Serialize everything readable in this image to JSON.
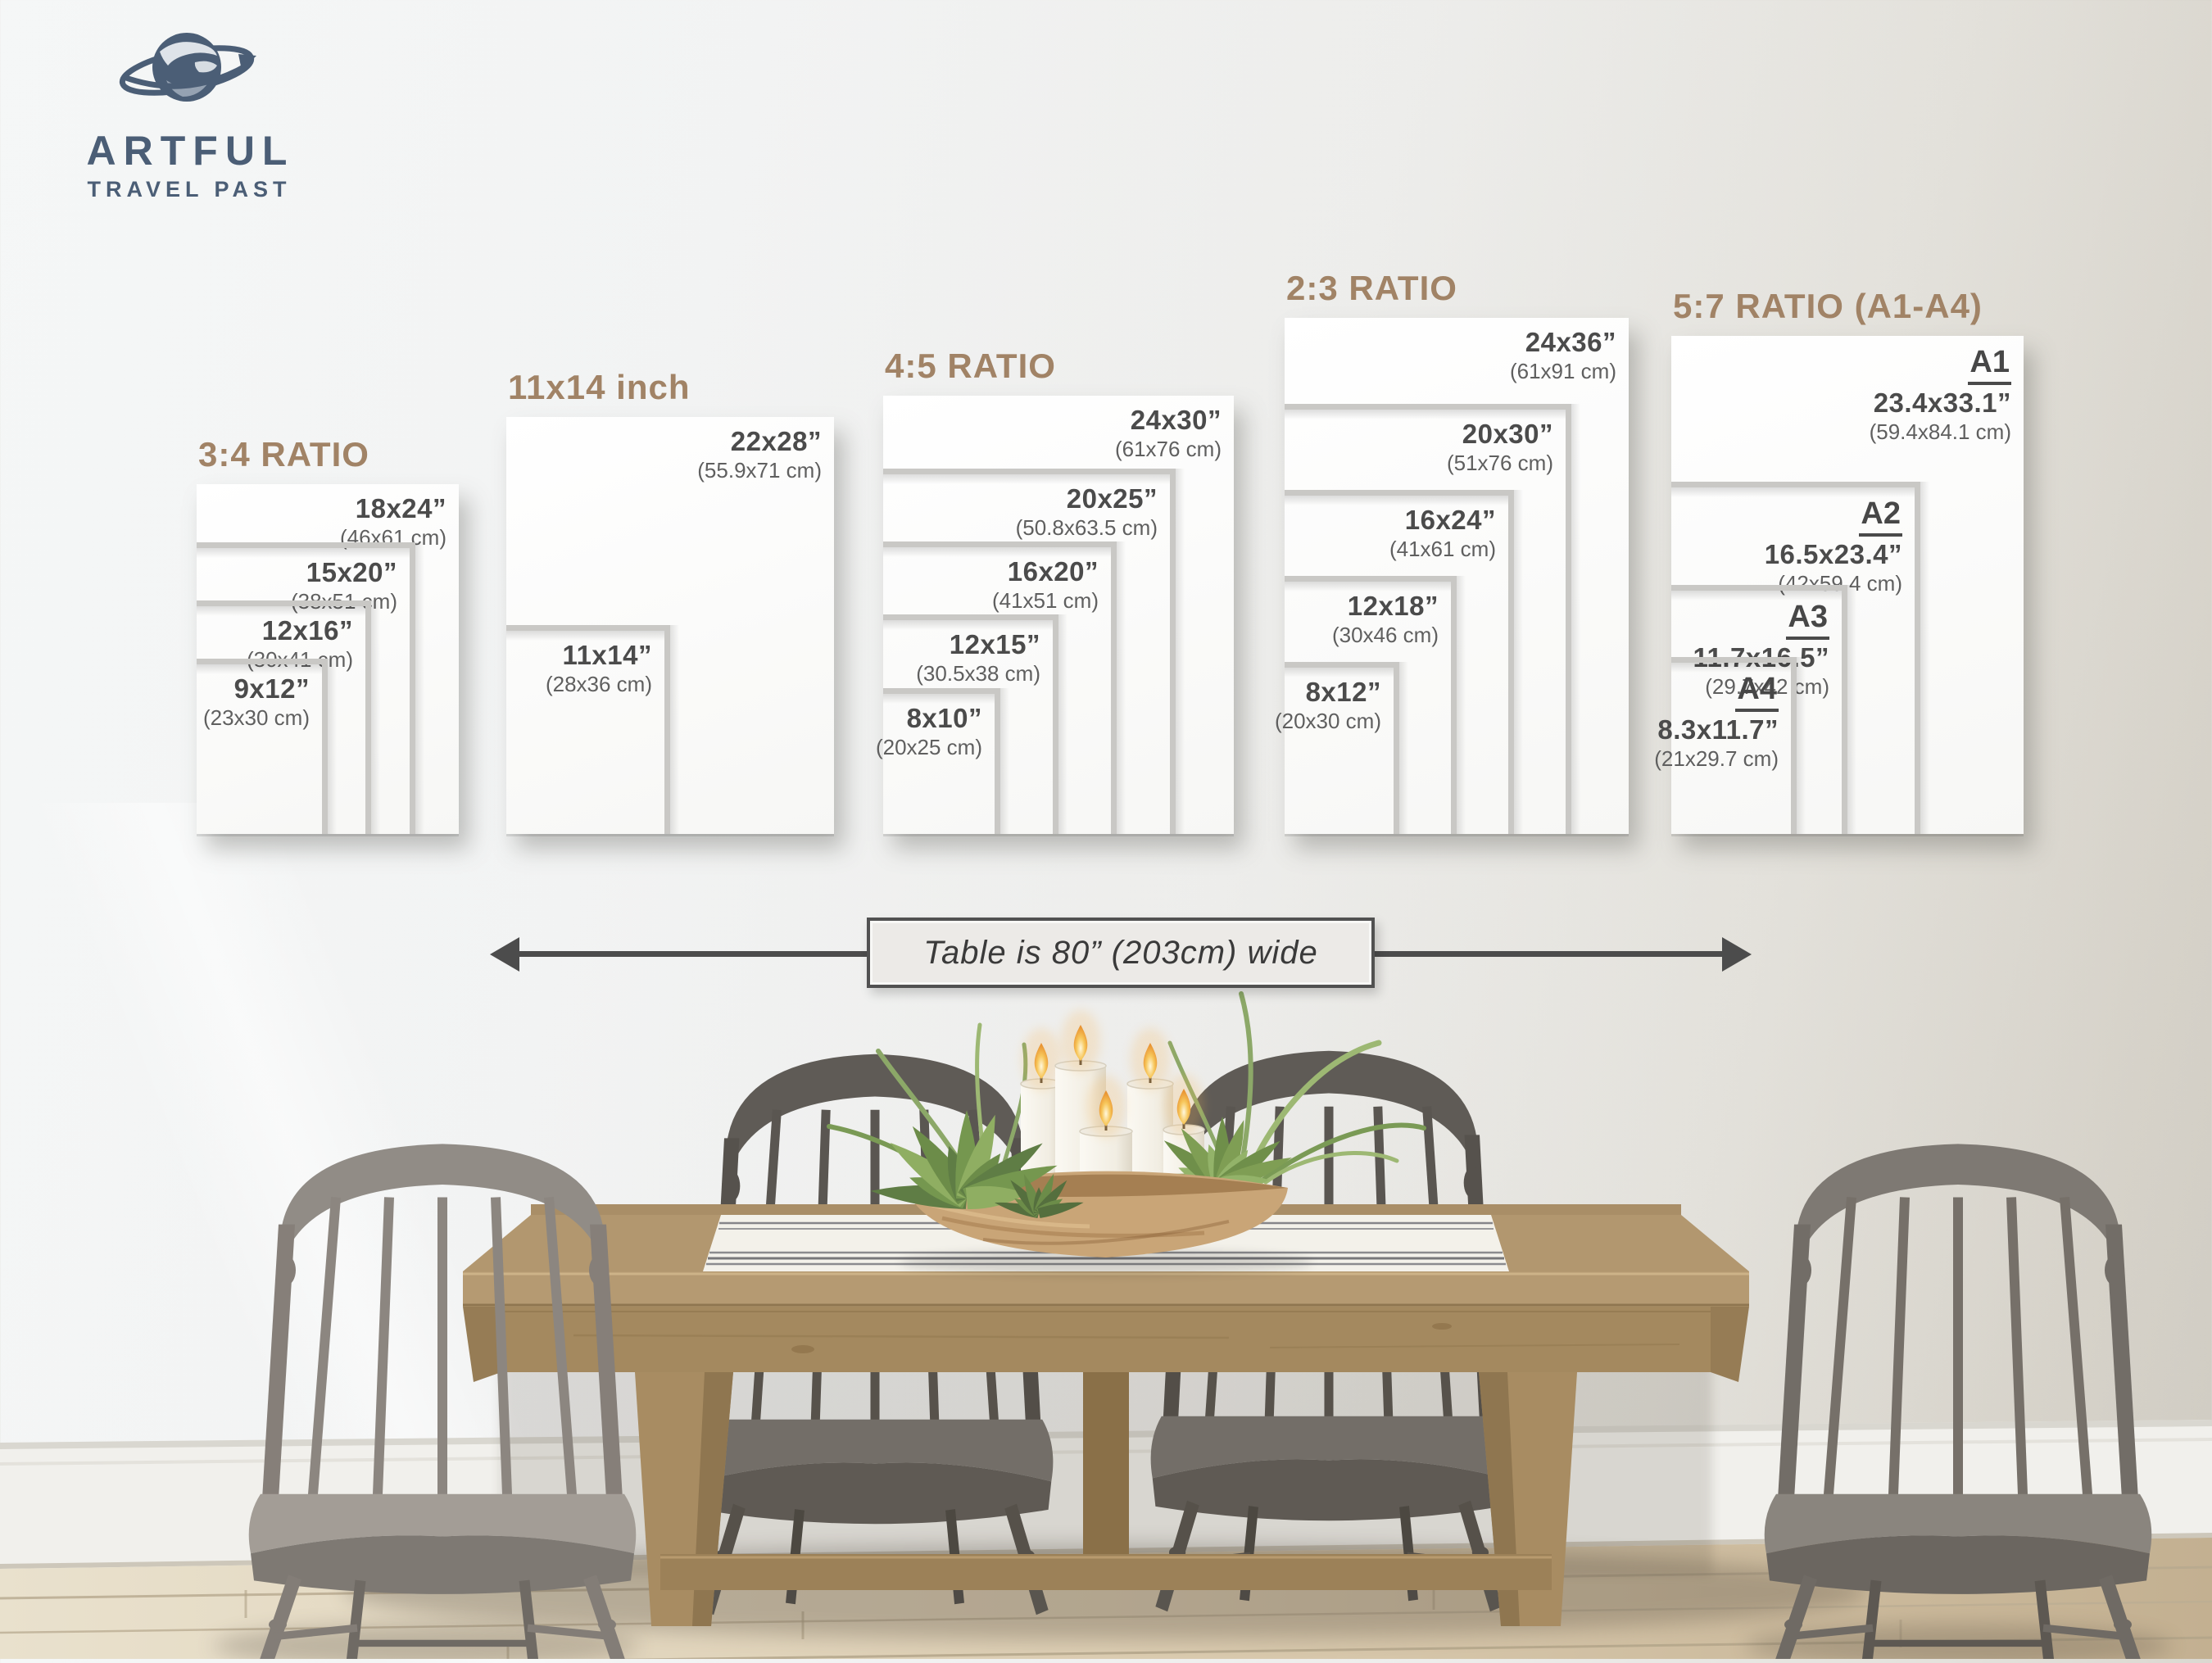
{
  "logo": {
    "name": "ARTFUL",
    "tagline": "TRAVEL PAST"
  },
  "annotation": {
    "text": "Table is 80” (203cm) wide"
  },
  "wall_chart": {
    "groups": [
      {
        "title": "3:4 RATIO",
        "sizes": [
          {
            "label": "18x24”",
            "cm": "(46x61 cm)",
            "scale": 1
          },
          {
            "label": "15x20”",
            "cm": "(38x51 cm)",
            "scale": 0.833
          },
          {
            "label": "12x16”",
            "cm": "(30x41 cm)",
            "scale": 0.667
          },
          {
            "label": "9x12”",
            "cm": "(23x30 cm)",
            "scale": 0.5
          }
        ]
      },
      {
        "title": "11x14 inch",
        "sizes": [
          {
            "label": "22x28”",
            "cm": "(55.9x71 cm)",
            "scale": 1
          },
          {
            "label": "11x14”",
            "cm": "(28x36 cm)",
            "scale": 0.5
          }
        ]
      },
      {
        "title": "4:5 RATIO",
        "sizes": [
          {
            "label": "24x30”",
            "cm": "(61x76 cm)",
            "scale": 1
          },
          {
            "label": "20x25”",
            "cm": "(50.8x63.5 cm)",
            "scale": 0.833
          },
          {
            "label": "16x20”",
            "cm": "(41x51 cm)",
            "scale": 0.667
          },
          {
            "label": "12x15”",
            "cm": "(30.5x38 cm)",
            "scale": 0.5
          },
          {
            "label": "8x10”",
            "cm": "(20x25 cm)",
            "scale": 0.333
          }
        ]
      },
      {
        "title": "2:3 RATIO",
        "sizes": [
          {
            "label": "24x36”",
            "cm": "(61x91 cm)",
            "scale": 1
          },
          {
            "label": "20x30”",
            "cm": "(51x76 cm)",
            "scale": 0.833
          },
          {
            "label": "16x24”",
            "cm": "(41x61 cm)",
            "scale": 0.667
          },
          {
            "label": "12x18”",
            "cm": "(30x46 cm)",
            "scale": 0.5
          },
          {
            "label": "8x12”",
            "cm": "(20x30 cm)",
            "scale": 0.333
          }
        ]
      },
      {
        "title": "5:7 RATIO (A1-A4)",
        "sizes": [
          {
            "name": "A1",
            "label": "23.4x33.1”",
            "cm": "(59.4x84.1 cm)",
            "scale": 1
          },
          {
            "name": "A2",
            "label": "16.5x23.4”",
            "cm": "(42x59.4 cm)",
            "scale": 0.707
          },
          {
            "name": "A3",
            "label": "11.7x16.5”",
            "cm": "(29.7x42 cm)",
            "scale": 0.5
          },
          {
            "name": "A4",
            "label": "8.3x11.7”",
            "cm": "(21x29.7 cm)",
            "scale": 0.355
          }
        ]
      }
    ]
  },
  "colors": {
    "title_brown": "#a18366",
    "logo_blue": "#4b5e76",
    "frame_gray": "#c9c8c5",
    "label_dark": "#4b4b4b",
    "label_cm_gray": "#5f5f5f",
    "arrow_dark": "#4c4c4c",
    "wall_light": "#f2f3f3",
    "wall_dark": "#d6d2c9",
    "floor_wood": "#d9cab1",
    "table_wood": "#b2976f",
    "chair_gray_front": "#8d8882",
    "chair_gray_back": "#615d58",
    "candle_white": "#f5f2ea",
    "plant_green": "#7a9a55",
    "bowl_tan": "#c9a577"
  }
}
